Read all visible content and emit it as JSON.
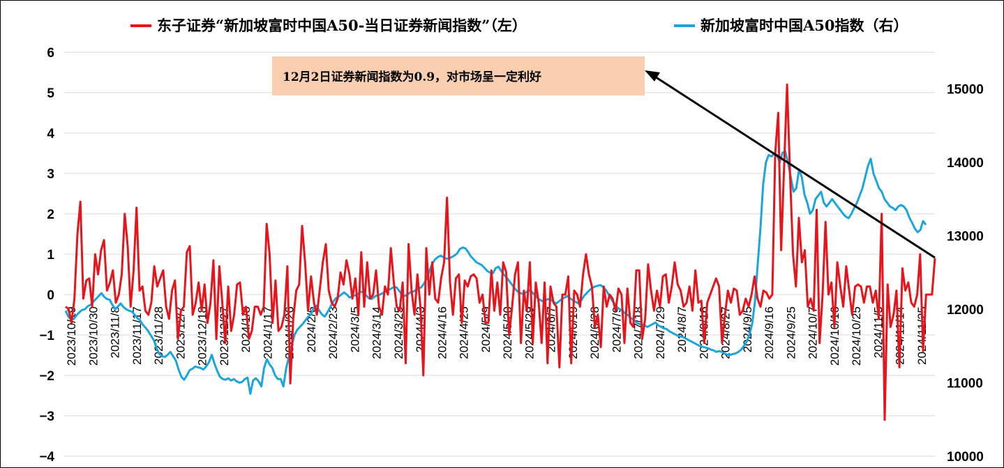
{
  "chart_data": {
    "type": "line",
    "title": "",
    "legend": {
      "placement": "top",
      "entries": [
        {
          "name": "东子证券“新加坡富时中国A50-当日证券新闻指数”（左）",
          "color": "#e8141b"
        },
        {
          "name": "新加坡富时中国A50指数（右）",
          "color": "#1aa6dc"
        }
      ]
    },
    "y_left": {
      "min": -4,
      "max": 6,
      "ticks": [
        -4,
        -3,
        -2,
        -1,
        0,
        1,
        2,
        3,
        4,
        5,
        6
      ],
      "tick_labels": [
        "−4",
        "−3",
        "−2",
        "−1",
        "0",
        "1",
        "2",
        "3",
        "4",
        "5",
        "6"
      ]
    },
    "y_right": {
      "min": 10000,
      "max": 15500,
      "ticks": [
        10000,
        11000,
        12000,
        13000,
        14000,
        15000
      ],
      "tick_labels": [
        "10000",
        "11000",
        "12000",
        "13000",
        "14000",
        "15000"
      ]
    },
    "grid": "horizontal",
    "x_tick_labels": [
      "2023/10/19",
      "2023/10/30",
      "2023/11/8",
      "2023/11/17",
      "2023/11/28",
      "2023/12/7",
      "2023/12/18",
      "2023/12/27",
      "2024/1/8",
      "2024/1/17",
      "2024/1/26",
      "2024/2/6",
      "2024/2/23",
      "2024/3/5",
      "2024/3/14",
      "2024/3/25",
      "2024/4/3",
      "2024/4/16",
      "2024/4/25",
      "2024/5/9",
      "2024/5/20",
      "2024/5/29",
      "2024/6/7",
      "2024/6/19",
      "2024/6/28",
      "2024/7/9",
      "2024/7/18",
      "2024/7/29",
      "2024/8/7",
      "2024/8/16",
      "2024/8/27",
      "2024/9/5",
      "2024/9/16",
      "2024/9/25",
      "2024/10/7",
      "2024/10/16",
      "2024/10/25",
      "2024/11/5",
      "2024/11/14",
      "2024/11/25"
    ],
    "annotation": {
      "text": "12月2日证券新闻指数为0.9，对市场呈一定利好",
      "value": 0.9
    },
    "series": [
      {
        "name": "东子证券“新加坡富时中国A50-当日证券新闻指数”（左）",
        "axis": "left",
        "color": "#e8141b",
        "values": [
          -0.3,
          -0.35,
          -0.7,
          -0.1,
          1.5,
          2.3,
          -0.1,
          0.35,
          0.4,
          -0.3,
          1.0,
          0.5,
          1.1,
          1.35,
          0.1,
          0.3,
          0.6,
          -0.2,
          0.0,
          0.5,
          2.0,
          1.2,
          -0.3,
          0.6,
          2.15,
          0.1,
          0.2,
          -0.4,
          -0.5,
          -0.2,
          0.7,
          0.2,
          0.4,
          0.6,
          -0.3,
          -0.6,
          0.1,
          0.35,
          -1.1,
          -0.4,
          -0.3,
          1.05,
          1.2,
          -0.5,
          -0.2,
          0.3,
          -0.4,
          0.25,
          -0.7,
          -0.2,
          0.85,
          -1.1,
          0.7,
          -0.2,
          -1.2,
          0.2,
          -0.9,
          -0.5,
          0.25,
          0.3,
          -0.5,
          -0.3,
          -1.1,
          -0.9,
          -0.3,
          -0.3,
          -0.5,
          -0.3,
          1.75,
          1.0,
          -0.7,
          0.35,
          -0.9,
          -0.8,
          -0.5,
          0.7,
          -2.2,
          -0.6,
          0.1,
          0.25,
          1.7,
          0.8,
          -0.4,
          0.45,
          -0.2,
          -0.5,
          0.15,
          0.8,
          1.25,
          0.1,
          -0.2,
          -0.3,
          -0.1,
          0.55,
          0.25,
          0.85,
          0.5,
          -0.1,
          0.4,
          -0.5,
          1.05,
          -0.3,
          0.8,
          -0.1,
          0.0,
          0.6,
          -0.3,
          -0.5,
          0.2,
          0.0,
          1.15,
          0.3,
          -0.3,
          -0.4,
          0.3,
          -1.7,
          1.25,
          0.1,
          -0.5,
          0.5,
          -0.3,
          -2.0,
          1.15,
          0.0,
          0.8,
          -0.1,
          -0.2,
          0.4,
          0.8,
          2.4,
          0.3,
          -0.5,
          0.4,
          0.5,
          -0.7,
          0.35,
          0.2,
          0.45,
          0.5,
          0.4,
          -0.2,
          0.0,
          -0.7,
          -0.7,
          0.6,
          -0.4,
          0.3,
          -0.5,
          0.8,
          0.55,
          -1.0,
          -0.3,
          0.5,
          0.8,
          -1.2,
          0.1,
          -0.4,
          0.8,
          -1.2,
          0.3,
          -0.2,
          -1.2,
          0.3,
          -1.7,
          0.2,
          -0.2,
          -0.3,
          -1.8,
          0.0,
          0.0,
          0.45,
          -1.7,
          0.1,
          0.0,
          -0.3,
          0.5,
          1.0,
          0.5,
          0.2,
          -0.8,
          -0.5,
          -1.3,
          0.2,
          -0.3,
          0.0,
          -0.1,
          -0.4,
          0.15,
          0.0,
          -1.2,
          0.15,
          -0.7,
          -0.8,
          0.6,
          0.6,
          -1.1,
          -0.6,
          0.75,
          0.1,
          -0.4,
          0.1,
          -0.3,
          0.45,
          0.5,
          -0.2,
          0.2,
          0.8,
          0.25,
          0.1,
          -0.3,
          -0.2,
          0.2,
          -0.4,
          0.6,
          -0.2,
          -0.15,
          -1.2,
          -0.2,
          0.0,
          0.2,
          0.4,
          0.2,
          -1.2,
          -0.5,
          0.1,
          -0.2,
          0.15,
          0.1,
          -0.5,
          -0.4,
          -0.1,
          -0.3,
          0.0,
          0.45,
          -0.1,
          -0.3,
          0.1,
          0.05,
          -0.1,
          0.0,
          3.5,
          4.5,
          1.1,
          3.2,
          5.2,
          3.0,
          1.0,
          0.2,
          1.9,
          0.8,
          1.1,
          -0.3,
          -0.1,
          -0.4,
          2.1,
          -1.2,
          0.0,
          1.8,
          0.0,
          0.3,
          -0.8,
          0.8,
          0.2,
          -0.3,
          0.7,
          0.1,
          -0.5,
          0.2,
          0.25,
          0.2,
          -0.2,
          0.2,
          0.2,
          -0.2,
          0.1,
          -0.6,
          2.0,
          -3.1,
          0.25,
          -0.8,
          -0.5,
          0.1,
          -1.8,
          0.65,
          0.1,
          0.3,
          -0.2,
          -0.3,
          0.0,
          1.0,
          -1.4,
          0.0,
          0.0,
          0.0,
          0.9
        ]
      },
      {
        "name": "新加坡富时中国A50指数（右）",
        "axis": "right",
        "color": "#1aa6dc",
        "values": [
          11980,
          11900,
          11860,
          11870,
          11920,
          11960,
          11990,
          12000,
          12040,
          12060,
          12100,
          12140,
          12180,
          12220,
          12170,
          12140,
          12130,
          12060,
          12000,
          12040,
          12080,
          12030,
          12000,
          11980,
          11970,
          11930,
          11880,
          11850,
          11790,
          11750,
          11700,
          11640,
          11580,
          11470,
          11390,
          11360,
          11350,
          11380,
          11420,
          11360,
          11300,
          11180,
          11080,
          11040,
          11100,
          11170,
          11190,
          11220,
          11210,
          11200,
          11180,
          11220,
          11280,
          11380,
          11260,
          11160,
          11080,
          11050,
          11040,
          11060,
          11030,
          11050,
          11020,
          11000,
          11010,
          11050,
          11070,
          10850,
          11030,
          11060,
          11020,
          10950,
          11200,
          11320,
          11250,
          11200,
          11100,
          11050,
          11050,
          10950,
          11200,
          11350,
          11500,
          11650,
          11720,
          11760,
          11800,
          11850,
          11900,
          11930,
          12020,
          12050,
          11980,
          11930,
          11900,
          11960,
          12030,
          12100,
          12150,
          12170,
          12200,
          12230,
          12200,
          12160,
          12180,
          12190,
          12210,
          12240,
          12230,
          12190,
          12150,
          12140,
          12170,
          12190,
          12200,
          12220,
          12240,
          12260,
          12280,
          12300,
          12300,
          12250,
          12200,
          12180,
          12200,
          12230,
          12240,
          12260,
          12280,
          12300,
          12350,
          12420,
          12530,
          12620,
          12680,
          12710,
          12730,
          12710,
          12690,
          12690,
          12710,
          12730,
          12760,
          12820,
          12840,
          12830,
          12780,
          12720,
          12680,
          12640,
          12620,
          12600,
          12560,
          12520,
          12500,
          12490,
          12560,
          12580,
          12520,
          12470,
          12430,
          12380,
          12330,
          12280,
          12240,
          12220,
          12210,
          12230,
          12260,
          12240,
          12200,
          12160,
          12130,
          12110,
          12120,
          12140,
          12130,
          12100,
          12080,
          12110,
          12140,
          12160,
          12180,
          12150,
          12120,
          12100,
          12080,
          12120,
          12180,
          12220,
          12260,
          12290,
          12310,
          12320,
          12330,
          12300,
          12260,
          12200,
          12130,
          12080,
          12030,
          12000,
          11980,
          11940,
          11920,
          11880,
          11860,
          11820,
          11800,
          11790,
          11780,
          11760,
          11780,
          11800,
          11820,
          11780,
          11760,
          11740,
          11730,
          11700,
          11680,
          11660,
          11640,
          11630,
          11620,
          11600,
          11580,
          11560,
          11540,
          11520,
          11500,
          11490,
          11480,
          11470,
          11450,
          11440,
          11420,
          11430,
          11420,
          11400,
          11380,
          11380,
          11390,
          11400,
          11420,
          11450,
          11500,
          11560,
          11650,
          11800,
          12100,
          12600,
          13100,
          13700,
          14000,
          14100,
          14080,
          14120,
          14100,
          14000,
          14130,
          14150,
          14000,
          13800,
          13600,
          13650,
          13900,
          13800,
          13560,
          13450,
          13300,
          13350,
          13500,
          13550,
          13600,
          13450,
          13400,
          13450,
          13500,
          13450,
          13400,
          13350,
          13300,
          13260,
          13240,
          13300,
          13380,
          13450,
          13550,
          13650,
          13800,
          13950,
          14050,
          13850,
          13750,
          13650,
          13600,
          13500,
          13450,
          13400,
          13380,
          13350,
          13400,
          13420,
          13400,
          13350,
          13250,
          13180,
          13100,
          13050,
          13080,
          13200,
          13150
        ]
      }
    ]
  }
}
